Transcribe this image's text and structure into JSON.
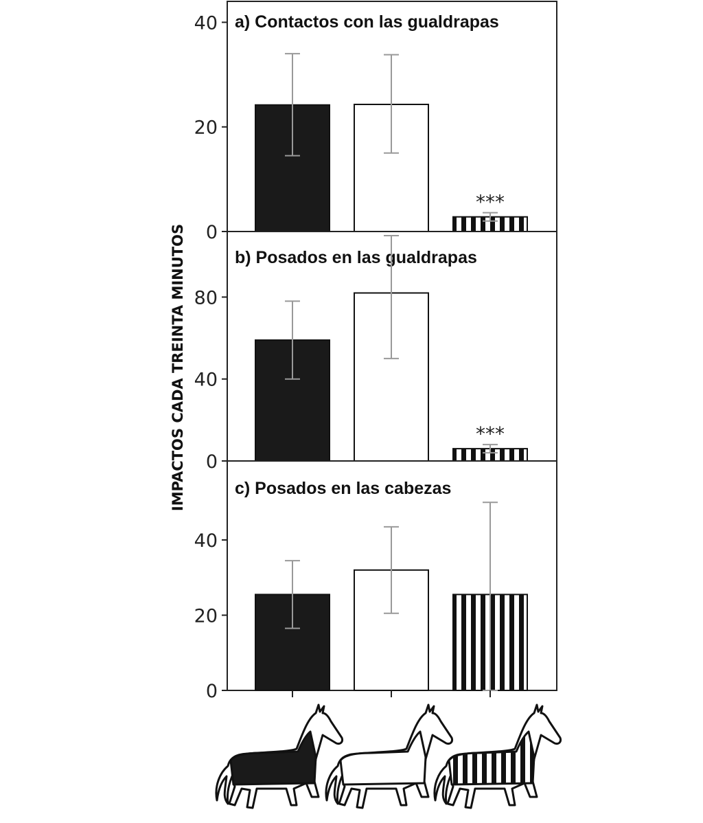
{
  "chart_data": {
    "type": "bar",
    "ylabel": "IMPACTOS CADA TREINTA MINUTOS",
    "categories": [
      "black",
      "white",
      "striped"
    ],
    "colors": {
      "black": "#1a1a1a",
      "white": "#ffffff",
      "stripe_dark": "#111111",
      "error_bar": "#999999",
      "axis": "#222222"
    },
    "panels": [
      {
        "title": "a) Contactos con las gualdrapas",
        "yticks": [
          0,
          20,
          40
        ],
        "ylim": [
          0,
          44
        ],
        "values": [
          24.2,
          24.3,
          2.8
        ],
        "err_low": [
          14.5,
          15.0,
          2.0
        ],
        "err_high": [
          34.0,
          33.8,
          3.6
        ],
        "annotations": [
          "",
          "",
          "***"
        ]
      },
      {
        "title": "b) Posados en las gualdrapas",
        "yticks": [
          0,
          40,
          80
        ],
        "ylim": [
          0,
          112
        ],
        "values": [
          59,
          82,
          6
        ],
        "err_low": [
          40,
          50,
          4
        ],
        "err_high": [
          78,
          110,
          8
        ],
        "annotations": [
          "",
          "",
          "***"
        ]
      },
      {
        "title": "c) Posados en las cabezas",
        "yticks": [
          0,
          20,
          40
        ],
        "ylim": [
          0,
          61
        ],
        "values": [
          25.5,
          32,
          25.5
        ],
        "err_low": [
          16.5,
          20.5,
          0
        ],
        "err_high": [
          34.5,
          43.5,
          50
        ],
        "annotations": [
          "",
          "",
          ""
        ]
      }
    ],
    "x_icons": [
      "horse-black-blanket-icon",
      "horse-white-blanket-icon",
      "horse-striped-blanket-icon"
    ]
  }
}
